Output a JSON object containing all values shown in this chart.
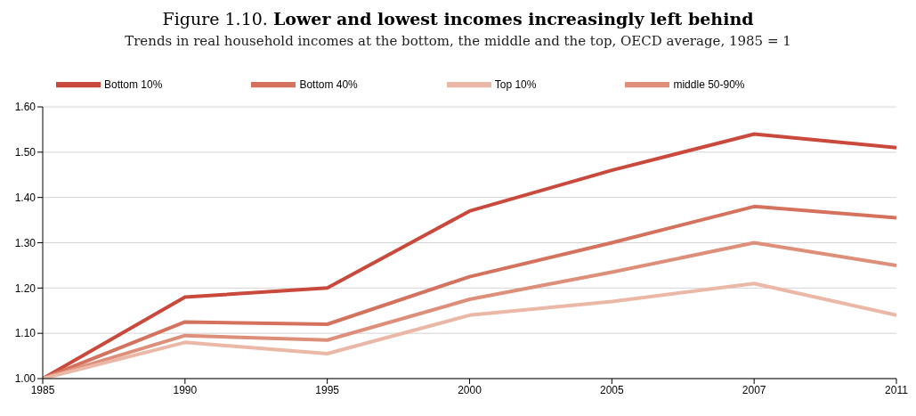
{
  "chart_data": {
    "type": "line",
    "title": "Figure 1.10. Lower and lowest incomes increasingly left behind",
    "subtitle": "Trends in real household incomes at the bottom, the middle and the top, OECD average, 1985 = 1",
    "categories": [
      "1985",
      "1990",
      "1995",
      "2000",
      "2005",
      "2007",
      "2011"
    ],
    "series": [
      {
        "name": "Bottom 10%",
        "color": "#c94a3c",
        "values": [
          1.0,
          1.18,
          1.2,
          1.37,
          1.46,
          1.54,
          1.51
        ]
      },
      {
        "name": "Bottom 40%",
        "color": "#d4725e",
        "values": [
          1.0,
          1.125,
          1.12,
          1.225,
          1.3,
          1.38,
          1.355
        ]
      },
      {
        "name": "middle 50-90%",
        "color": "#de8f7a",
        "values": [
          1.0,
          1.095,
          1.085,
          1.175,
          1.235,
          1.3,
          1.25
        ]
      },
      {
        "name": "Top 10%",
        "color": "#ebb7a6",
        "values": [
          1.0,
          1.08,
          1.055,
          1.14,
          1.17,
          1.21,
          1.14
        ]
      }
    ],
    "ylim": [
      1.0,
      1.6
    ],
    "yticks": [
      {
        "value": 1.0,
        "label": "1.00"
      },
      {
        "value": 1.1,
        "label": "1.10"
      },
      {
        "value": 1.2,
        "label": "1.20"
      },
      {
        "value": 1.3,
        "label": "1.30"
      },
      {
        "value": 1.4,
        "label": "1.40"
      },
      {
        "value": 1.5,
        "label": "1.50"
      },
      {
        "value": 1.6,
        "label": "1.60"
      }
    ],
    "grid": "y",
    "legend": "top left",
    "marker": "none",
    "line_style": "solid"
  }
}
